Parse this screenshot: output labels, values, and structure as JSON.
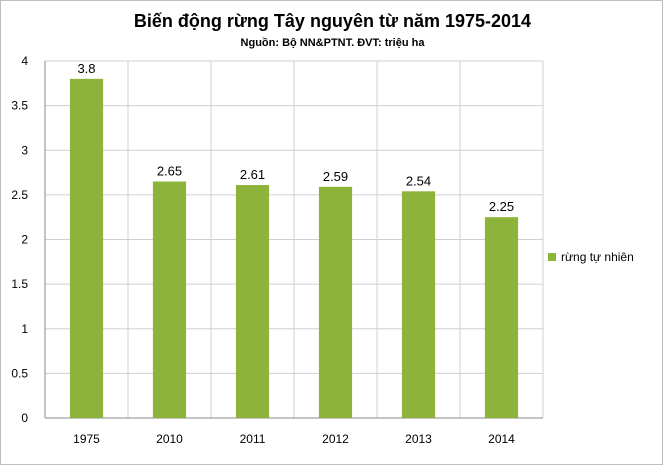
{
  "chart_data": {
    "type": "bar",
    "title": "Biến động rừng Tây nguyên từ năm 1975-2014",
    "subtitle": "Nguồn: Bộ NN&PTNT. ĐVT: triệu ha",
    "xlabel": "",
    "ylabel": "",
    "categories": [
      "1975",
      "2010",
      "2011",
      "2012",
      "2013",
      "2014"
    ],
    "series": [
      {
        "name": "rừng tự nhiên",
        "values": [
          3.8,
          2.65,
          2.61,
          2.59,
          2.54,
          2.25
        ],
        "color": "#8db33a"
      }
    ],
    "data_labels": [
      "3.8",
      "2.65",
      "2.61",
      "2.59",
      "2.54",
      "2.25"
    ],
    "y_ticks": [
      "0",
      "0.5",
      "1",
      "1.5",
      "2",
      "2.5",
      "3",
      "3.5",
      "4"
    ],
    "ylim": [
      0,
      4
    ],
    "grid": true,
    "legend_position": "right"
  }
}
